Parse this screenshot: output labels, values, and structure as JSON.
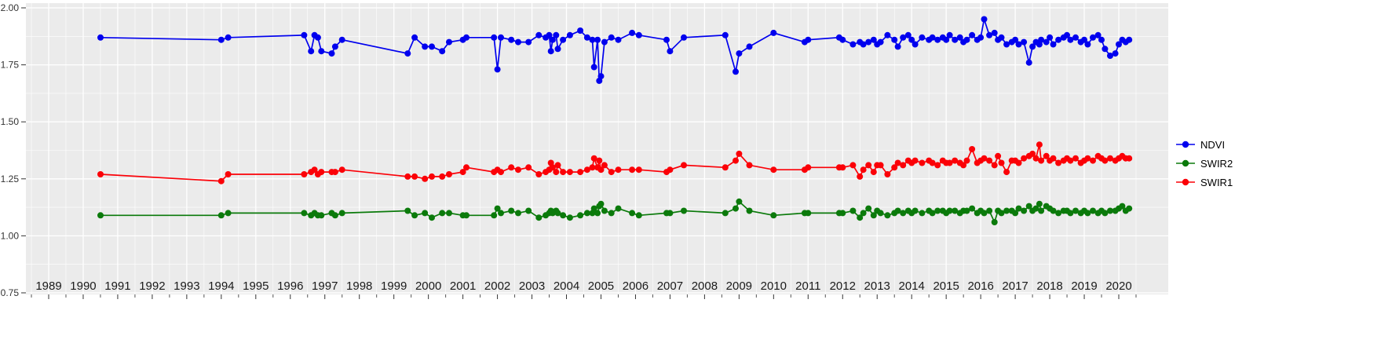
{
  "colors": {
    "panel_background": "#ebebeb",
    "grid": "#ffffff",
    "axis_text": "#333333",
    "tick": "#333333",
    "ndvi": "#0000ee",
    "swir2": "#0b7a0b",
    "swir1": "#fb0007"
  },
  "chart_data": {
    "type": "line",
    "title": "",
    "xlabel": "",
    "ylabel": "",
    "xlim": [
      1988.3,
      2021.4
    ],
    "ylim": [
      0.75,
      2.0
    ],
    "grid": "white major and minor gridlines on gray panel",
    "legend_position": "right",
    "x_tick_labels": [
      "1989",
      "1990",
      "1991",
      "1992",
      "1993",
      "1994",
      "1995",
      "1996",
      "1997",
      "1998",
      "1999",
      "2000",
      "2001",
      "2002",
      "2003",
      "2004",
      "2005",
      "2006",
      "2007",
      "2008",
      "2009",
      "2010",
      "2011",
      "2012",
      "2013",
      "2014",
      "2015",
      "2016",
      "2017",
      "2018",
      "2019",
      "2020"
    ],
    "y_tick_values": [
      2.0,
      1.75,
      1.5,
      1.25,
      1.0,
      0.75
    ],
    "y_tick_labels": [
      "2.00",
      "1.75",
      "1.50",
      "1.25",
      "1.00",
      "0.75"
    ],
    "x": [
      1990.5,
      1994.0,
      1994.2,
      1996.4,
      1996.6,
      1996.7,
      1996.8,
      1996.9,
      1997.2,
      1997.3,
      1997.5,
      1999.4,
      1999.6,
      1999.9,
      2000.1,
      2000.4,
      2000.6,
      2001.0,
      2001.1,
      2001.9,
      2002.0,
      2002.1,
      2002.4,
      2002.6,
      2002.9,
      2003.2,
      2003.4,
      2003.5,
      2003.55,
      2003.6,
      2003.7,
      2003.75,
      2003.9,
      2004.1,
      2004.4,
      2004.6,
      2004.75,
      2004.8,
      2004.9,
      2004.95,
      2005.0,
      2005.1,
      2005.3,
      2005.5,
      2005.9,
      2006.1,
      2006.9,
      2007.0,
      2007.4,
      2008.6,
      2008.9,
      2009.0,
      2009.3,
      2010.0,
      2010.9,
      2011.0,
      2011.9,
      2012.0,
      2012.3,
      2012.5,
      2012.6,
      2012.75,
      2012.9,
      2013.0,
      2013.1,
      2013.3,
      2013.5,
      2013.6,
      2013.75,
      2013.9,
      2014.0,
      2014.1,
      2014.3,
      2014.5,
      2014.6,
      2014.75,
      2014.9,
      2015.0,
      2015.1,
      2015.25,
      2015.4,
      2015.5,
      2015.6,
      2015.75,
      2015.9,
      2016.0,
      2016.1,
      2016.25,
      2016.4,
      2016.5,
      2016.6,
      2016.75,
      2016.9,
      2017.0,
      2017.1,
      2017.25,
      2017.4,
      2017.5,
      2017.6,
      2017.7,
      2017.75,
      2017.9,
      2018.0,
      2018.1,
      2018.25,
      2018.4,
      2018.5,
      2018.6,
      2018.75,
      2018.9,
      2019.0,
      2019.1,
      2019.25,
      2019.4,
      2019.5,
      2019.6,
      2019.75,
      2019.9,
      2020.0,
      2020.1,
      2020.2,
      2020.3
    ],
    "series": [
      {
        "name": "NDVI",
        "color": "#0000ee",
        "values": [
          1.87,
          1.86,
          1.87,
          1.88,
          1.81,
          1.88,
          1.87,
          1.81,
          1.8,
          1.83,
          1.86,
          1.8,
          1.87,
          1.83,
          1.83,
          1.81,
          1.85,
          1.86,
          1.87,
          1.87,
          1.73,
          1.87,
          1.86,
          1.85,
          1.85,
          1.88,
          1.87,
          1.88,
          1.81,
          1.86,
          1.88,
          1.82,
          1.86,
          1.88,
          1.9,
          1.87,
          1.86,
          1.74,
          1.86,
          1.68,
          1.7,
          1.85,
          1.87,
          1.86,
          1.89,
          1.88,
          1.86,
          1.81,
          1.87,
          1.88,
          1.72,
          1.8,
          1.83,
          1.89,
          1.85,
          1.86,
          1.87,
          1.86,
          1.84,
          1.85,
          1.84,
          1.85,
          1.86,
          1.84,
          1.85,
          1.88,
          1.86,
          1.83,
          1.87,
          1.88,
          1.86,
          1.84,
          1.87,
          1.86,
          1.87,
          1.86,
          1.87,
          1.86,
          1.88,
          1.86,
          1.87,
          1.85,
          1.86,
          1.88,
          1.86,
          1.87,
          1.95,
          1.88,
          1.89,
          1.86,
          1.87,
          1.84,
          1.85,
          1.86,
          1.84,
          1.85,
          1.76,
          1.83,
          1.85,
          1.84,
          1.86,
          1.85,
          1.87,
          1.84,
          1.86,
          1.87,
          1.88,
          1.86,
          1.87,
          1.85,
          1.86,
          1.84,
          1.87,
          1.88,
          1.86,
          1.82,
          1.79,
          1.8,
          1.84,
          1.86,
          1.85,
          1.86
        ]
      },
      {
        "name": "SWIR2",
        "color": "#0b7a0b",
        "values": [
          1.09,
          1.09,
          1.1,
          1.1,
          1.09,
          1.1,
          1.09,
          1.09,
          1.1,
          1.09,
          1.1,
          1.11,
          1.09,
          1.1,
          1.08,
          1.1,
          1.1,
          1.09,
          1.09,
          1.09,
          1.12,
          1.1,
          1.11,
          1.1,
          1.11,
          1.08,
          1.09,
          1.1,
          1.11,
          1.1,
          1.11,
          1.1,
          1.09,
          1.08,
          1.09,
          1.1,
          1.1,
          1.12,
          1.1,
          1.13,
          1.14,
          1.11,
          1.1,
          1.12,
          1.1,
          1.09,
          1.1,
          1.1,
          1.11,
          1.1,
          1.12,
          1.15,
          1.11,
          1.09,
          1.1,
          1.1,
          1.1,
          1.1,
          1.11,
          1.08,
          1.1,
          1.12,
          1.09,
          1.11,
          1.1,
          1.09,
          1.1,
          1.11,
          1.1,
          1.11,
          1.1,
          1.11,
          1.1,
          1.11,
          1.1,
          1.11,
          1.11,
          1.1,
          1.11,
          1.11,
          1.1,
          1.11,
          1.11,
          1.12,
          1.1,
          1.11,
          1.1,
          1.11,
          1.06,
          1.11,
          1.1,
          1.11,
          1.11,
          1.1,
          1.12,
          1.11,
          1.13,
          1.11,
          1.12,
          1.14,
          1.11,
          1.13,
          1.12,
          1.11,
          1.1,
          1.11,
          1.11,
          1.1,
          1.11,
          1.1,
          1.11,
          1.1,
          1.11,
          1.1,
          1.11,
          1.1,
          1.11,
          1.11,
          1.12,
          1.13,
          1.11,
          1.12
        ]
      },
      {
        "name": "SWIR1",
        "color": "#fb0007",
        "values": [
          1.27,
          1.24,
          1.27,
          1.27,
          1.28,
          1.29,
          1.27,
          1.28,
          1.28,
          1.28,
          1.29,
          1.26,
          1.26,
          1.25,
          1.26,
          1.26,
          1.27,
          1.28,
          1.3,
          1.28,
          1.29,
          1.28,
          1.3,
          1.29,
          1.3,
          1.27,
          1.28,
          1.29,
          1.32,
          1.3,
          1.28,
          1.31,
          1.28,
          1.28,
          1.28,
          1.29,
          1.3,
          1.34,
          1.3,
          1.33,
          1.29,
          1.31,
          1.28,
          1.29,
          1.29,
          1.29,
          1.28,
          1.29,
          1.31,
          1.3,
          1.33,
          1.36,
          1.31,
          1.29,
          1.29,
          1.3,
          1.3,
          1.3,
          1.31,
          1.26,
          1.29,
          1.31,
          1.28,
          1.31,
          1.31,
          1.27,
          1.3,
          1.32,
          1.31,
          1.33,
          1.32,
          1.33,
          1.32,
          1.33,
          1.32,
          1.31,
          1.33,
          1.32,
          1.32,
          1.33,
          1.32,
          1.31,
          1.33,
          1.38,
          1.32,
          1.33,
          1.34,
          1.33,
          1.31,
          1.35,
          1.32,
          1.28,
          1.33,
          1.33,
          1.32,
          1.34,
          1.35,
          1.36,
          1.34,
          1.4,
          1.33,
          1.35,
          1.33,
          1.34,
          1.32,
          1.33,
          1.34,
          1.33,
          1.34,
          1.32,
          1.33,
          1.34,
          1.33,
          1.35,
          1.34,
          1.33,
          1.34,
          1.33,
          1.34,
          1.35,
          1.34,
          1.34
        ]
      }
    ],
    "legend_entries": [
      "NDVI",
      "SWIR2",
      "SWIR1"
    ]
  }
}
